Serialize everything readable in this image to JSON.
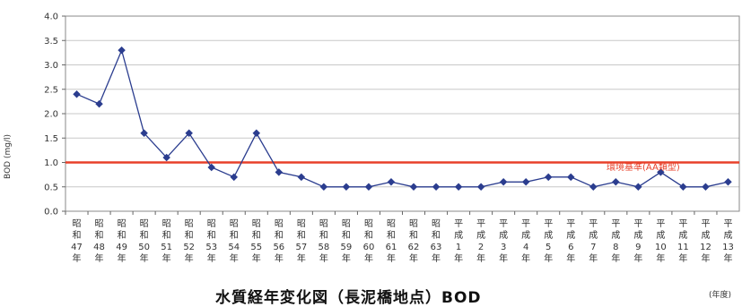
{
  "chart_data": {
    "type": "line",
    "title": "水質経年変化図（長泥橋地点）BOD",
    "xlabel": "(年度)",
    "ylabel": "BOD (mg/l)",
    "ylim": [
      0,
      4
    ],
    "y_ticks": [
      "0.0",
      "0.5",
      "1.0",
      "1.5",
      "2.0",
      "2.5",
      "3.0",
      "3.5",
      "4.0"
    ],
    "grid": true,
    "categories": [
      "昭和47年",
      "昭和48年",
      "昭和49年",
      "昭和50年",
      "昭和51年",
      "昭和52年",
      "昭和53年",
      "昭和54年",
      "昭和55年",
      "昭和56年",
      "昭和57年",
      "昭和58年",
      "昭和59年",
      "昭和60年",
      "昭和61年",
      "昭和62年",
      "昭和63年",
      "平成1年",
      "平成2年",
      "平成3年",
      "平成4年",
      "平成5年",
      "平成6年",
      "平成7年",
      "平成8年",
      "平成9年",
      "平成10年",
      "平成11年",
      "平成12年",
      "平成13年"
    ],
    "tick_labels": [
      [
        "昭",
        "和",
        "47",
        "年"
      ],
      [
        "昭",
        "和",
        "48",
        "年"
      ],
      [
        "昭",
        "和",
        "49",
        "年"
      ],
      [
        "昭",
        "和",
        "50",
        "年"
      ],
      [
        "昭",
        "和",
        "51",
        "年"
      ],
      [
        "昭",
        "和",
        "52",
        "年"
      ],
      [
        "昭",
        "和",
        "53",
        "年"
      ],
      [
        "昭",
        "和",
        "54",
        "年"
      ],
      [
        "昭",
        "和",
        "55",
        "年"
      ],
      [
        "昭",
        "和",
        "56",
        "年"
      ],
      [
        "昭",
        "和",
        "57",
        "年"
      ],
      [
        "昭",
        "和",
        "58",
        "年"
      ],
      [
        "昭",
        "和",
        "59",
        "年"
      ],
      [
        "昭",
        "和",
        "60",
        "年"
      ],
      [
        "昭",
        "和",
        "61",
        "年"
      ],
      [
        "昭",
        "和",
        "62",
        "年"
      ],
      [
        "昭",
        "和",
        "63",
        "年"
      ],
      [
        "平",
        "成",
        "1",
        "年"
      ],
      [
        "平",
        "成",
        "2",
        "年"
      ],
      [
        "平",
        "成",
        "3",
        "年"
      ],
      [
        "平",
        "成",
        "4",
        "年"
      ],
      [
        "平",
        "成",
        "5",
        "年"
      ],
      [
        "平",
        "成",
        "6",
        "年"
      ],
      [
        "平",
        "成",
        "7",
        "年"
      ],
      [
        "平",
        "成",
        "8",
        "年"
      ],
      [
        "平",
        "成",
        "9",
        "年"
      ],
      [
        "平",
        "成",
        "10",
        "年"
      ],
      [
        "平",
        "成",
        "11",
        "年"
      ],
      [
        "平",
        "成",
        "12",
        "年"
      ],
      [
        "平",
        "成",
        "13",
        "年"
      ]
    ],
    "series": [
      {
        "values": [
          2.4,
          2.2,
          3.3,
          1.6,
          1.1,
          1.6,
          0.9,
          0.7,
          1.6,
          0.8,
          0.7,
          0.5,
          0.5,
          0.5,
          0.6,
          0.5,
          0.5,
          0.5,
          0.5,
          0.6,
          0.6,
          0.7,
          0.7,
          0.5,
          0.6,
          0.5,
          0.8,
          0.5,
          0.5,
          0.6
        ],
        "color": "#2b3d8f"
      }
    ],
    "reference_line": {
      "label": "環境基準(AA類型)",
      "value": 1.0,
      "color": "#e8402a"
    }
  }
}
